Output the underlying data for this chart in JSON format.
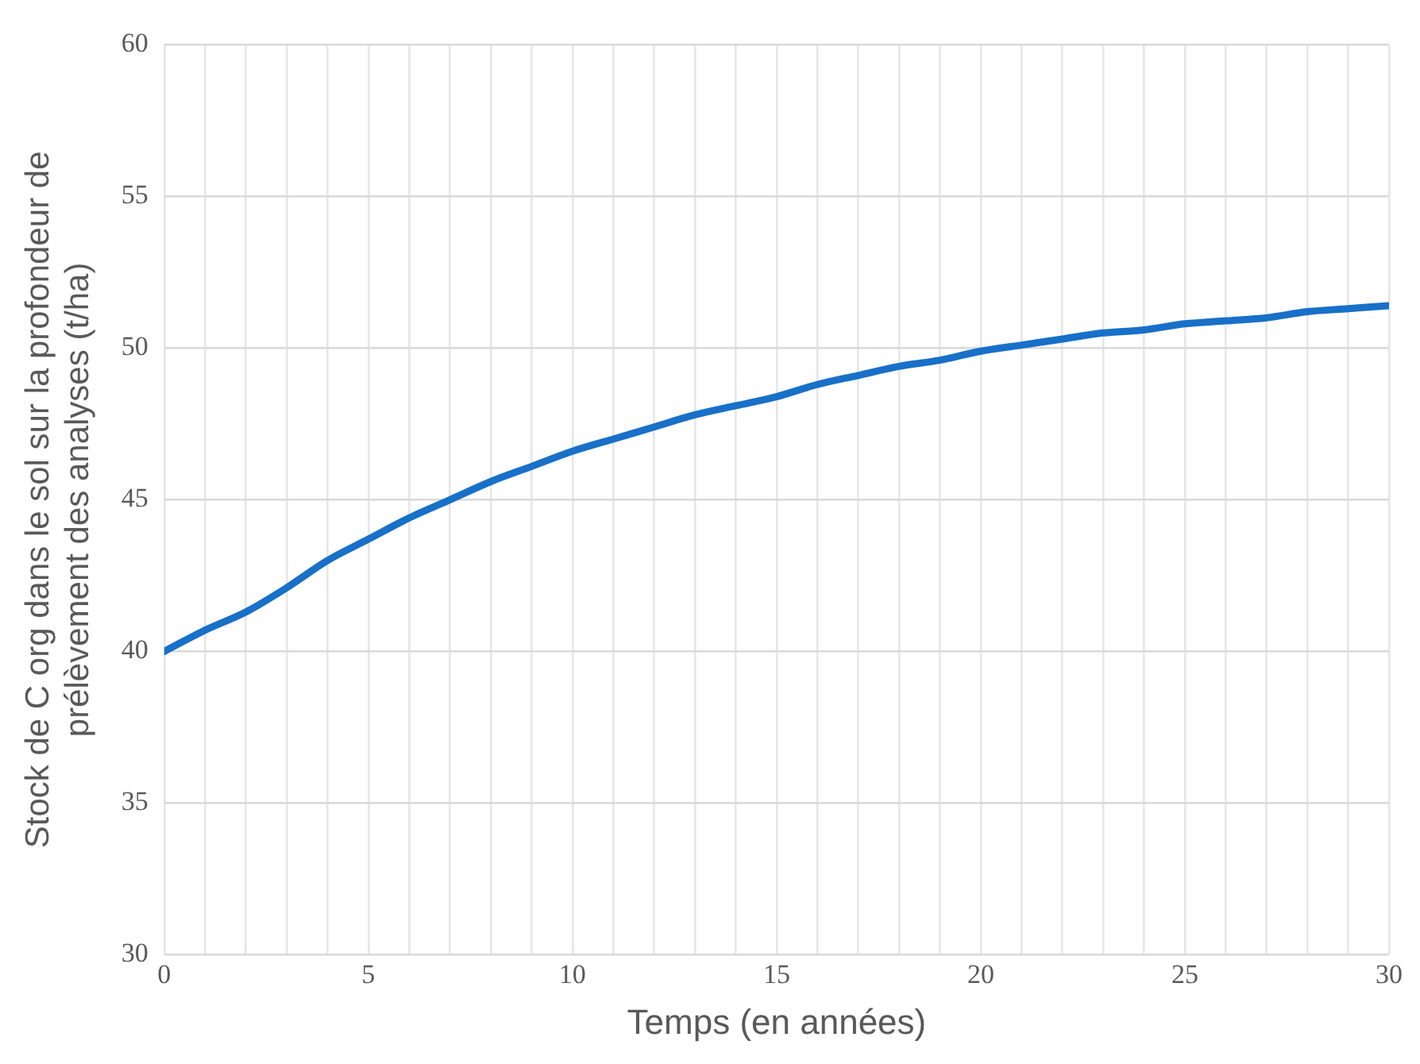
{
  "chart_data": {
    "type": "line",
    "xlabel": "Temps (en années)",
    "ylabel": "Stock de C org dans le sol sur la profondeur de prélèvement des analyses (t/ha)",
    "x": [
      0,
      1,
      2,
      3,
      4,
      5,
      6,
      7,
      8,
      9,
      10,
      11,
      12,
      13,
      14,
      15,
      16,
      17,
      18,
      19,
      20,
      21,
      22,
      23,
      24,
      25,
      26,
      27,
      28,
      29,
      30
    ],
    "series": [
      {
        "color": "#1870c8",
        "values": [
          40,
          40.7,
          41.3,
          42.1,
          43.0,
          43.7,
          44.4,
          45.0,
          45.6,
          46.1,
          46.6,
          47.0,
          47.4,
          47.8,
          48.1,
          48.4,
          48.8,
          49.1,
          49.4,
          49.6,
          49.9,
          50.1,
          50.3,
          50.5,
          50.6,
          50.8,
          50.9,
          51.0,
          51.2,
          51.3,
          51.4
        ]
      }
    ],
    "xlim": [
      0,
      30
    ],
    "xticks": [
      0,
      {
        "value": 1,
        "label": null
      },
      {
        "value": 2,
        "label": null
      },
      {
        "value": 3,
        "label": null
      },
      {
        "value": 4,
        "label": null
      },
      5,
      {
        "value": 6,
        "label": null
      },
      {
        "value": 7,
        "label": null
      },
      {
        "value": 8,
        "label": null
      },
      {
        "value": 9,
        "label": null
      },
      10,
      {
        "value": 11,
        "label": null
      },
      {
        "value": 12,
        "label": null
      },
      {
        "value": 13,
        "label": null
      },
      {
        "value": 14,
        "label": null
      },
      15,
      {
        "value": 16,
        "label": null
      },
      {
        "value": 17,
        "label": null
      },
      {
        "value": 18,
        "label": null
      },
      {
        "value": 19,
        "label": null
      },
      20,
      {
        "value": 21,
        "label": null
      },
      {
        "value": 22,
        "label": null
      },
      {
        "value": 23,
        "label": null
      },
      {
        "value": 24,
        "label": null
      },
      25,
      {
        "value": 26,
        "label": null
      },
      {
        "value": 27,
        "label": null
      },
      {
        "value": 28,
        "label": null
      },
      {
        "value": 29,
        "label": null
      },
      30
    ],
    "ylim": [
      30,
      60
    ],
    "yticks": [
      30,
      35,
      40,
      45,
      50,
      55,
      60
    ],
    "grid": true,
    "legend": false,
    "marker": "none",
    "line_style": "solid"
  }
}
